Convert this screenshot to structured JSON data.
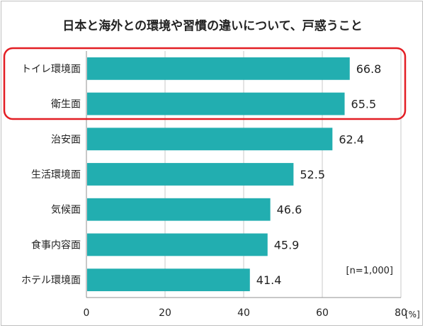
{
  "chart_data": {
    "type": "bar",
    "orientation": "horizontal",
    "title": "日本と海外との環境や習慣の違いについて、戸惑うこと",
    "categories": [
      "トイレ環境面",
      "衛生面",
      "治安面",
      "生活環境面",
      "気候面",
      "食事内容面",
      "ホテル環境面"
    ],
    "values": [
      66.8,
      65.5,
      62.4,
      52.5,
      46.6,
      45.9,
      41.4
    ],
    "xlim": [
      0,
      80
    ],
    "xticks": [
      "0",
      "20",
      "40",
      "60",
      "80"
    ],
    "unit_label": "[%]",
    "note": "[n=1,000]",
    "grid": true,
    "highlight": {
      "categories": [
        "トイレ環境面",
        "衛生面"
      ],
      "color": "#e31e24"
    },
    "colors": {
      "bar": "#22aeb0",
      "grid": "#c8c8c8",
      "axis": "#909090",
      "text": "#222222"
    }
  }
}
